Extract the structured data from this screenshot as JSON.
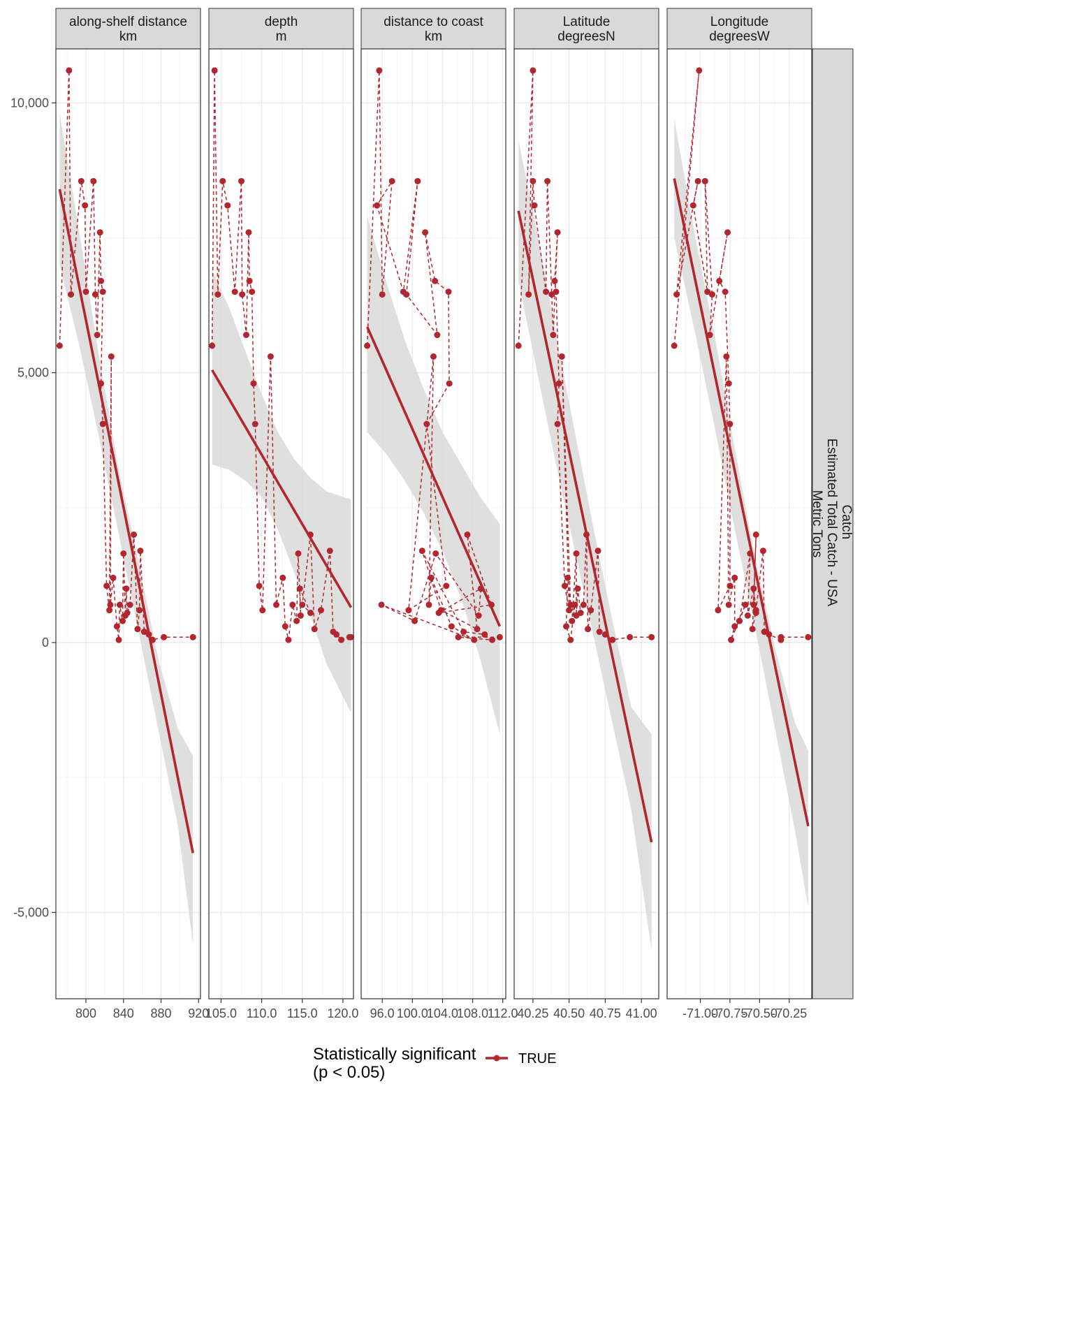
{
  "colors": {
    "series": "#b2262e",
    "ribbon": "#d9d9d9",
    "strip_fill": "#d9d9d9",
    "grid_major": "#ebebeb",
    "grid_minor": "#f5f5f5",
    "panel_border": "#333333"
  },
  "chart_data": {
    "type": "line",
    "facet_layout": "columns",
    "row_strip": [
      "Catch",
      "Estimated Total Catch - USA",
      "Metric Tons"
    ],
    "ylim": [
      -6600,
      11000
    ],
    "y_breaks": [
      -5000,
      0,
      5000,
      10000
    ],
    "y_tick_labels": [
      "-5,000",
      "0",
      "5,000",
      "10,000"
    ],
    "grid": true,
    "legend": {
      "title_lines": [
        "Statistically significant",
        "(p < 0.05)"
      ],
      "entries": [
        "TRUE"
      ],
      "position": "bottom"
    },
    "series_name": "TRUE",
    "y": [
      5500,
      10600,
      6450,
      8550,
      8100,
      6500,
      8550,
      6450,
      5700,
      7600,
      6700,
      6500,
      4800,
      4050,
      1050,
      600,
      5300,
      700,
      1200,
      300,
      50,
      700,
      400,
      1650,
      500,
      1000,
      550,
      700,
      2000,
      250,
      600,
      1700,
      200,
      150,
      50,
      100,
      100
    ],
    "panels": [
      {
        "title_lines": [
          "along-shelf distance",
          "km"
        ],
        "xlim": [
          768,
          922
        ],
        "x_breaks": [
          800,
          840,
          880,
          920
        ],
        "x_tick_labels": [
          "800",
          "840",
          "880",
          "920"
        ],
        "x": [
          772,
          782,
          784,
          795,
          799,
          800,
          808,
          810,
          812,
          815,
          816,
          818,
          816,
          818,
          822,
          825,
          827,
          826,
          829,
          833,
          835,
          836,
          839,
          840,
          842,
          843,
          844,
          847,
          851,
          855,
          857,
          858,
          862,
          867,
          871,
          883,
          914
        ],
        "fit": {
          "x": [
            772,
            914
          ],
          "y": [
            8400,
            -3900
          ]
        },
        "ribbon": {
          "x": [
            772,
            793,
            814,
            835,
            856,
            877,
            898,
            914
          ],
          "lower": [
            7000,
            5500,
            3800,
            2000,
            200,
            -1600,
            -3400,
            -5600
          ],
          "upper": [
            9800,
            7600,
            5300,
            3200,
            1500,
            -300,
            -1600,
            -2100
          ]
        }
      },
      {
        "title_lines": [
          "depth",
          "m"
        ],
        "xlim": [
          103.5,
          121.3
        ],
        "x_breaks": [
          105,
          110,
          115,
          120
        ],
        "x_tick_labels": [
          "105.0",
          "110.0",
          "115.0",
          "120.0"
        ],
        "x": [
          103.9,
          104.2,
          104.6,
          105.2,
          105.8,
          106.7,
          107.5,
          107.6,
          108.1,
          108.4,
          108.5,
          108.8,
          109.0,
          109.2,
          109.7,
          110.1,
          111.1,
          111.8,
          112.6,
          112.9,
          113.3,
          113.8,
          114.3,
          114.5,
          114.8,
          114.7,
          116.0,
          115.0,
          116.0,
          116.5,
          117.3,
          118.4,
          118.8,
          119.2,
          119.8,
          120.8,
          121.0
        ],
        "fit": {
          "x": [
            103.9,
            121.0
          ],
          "y": [
            5050,
            650
          ]
        },
        "ribbon": {
          "x": [
            103.9,
            106,
            108,
            110,
            112,
            114,
            116,
            118,
            121
          ],
          "lower": [
            3300,
            3200,
            3000,
            2700,
            2100,
            1300,
            500,
            -400,
            -1300
          ],
          "upper": [
            6900,
            6200,
            5400,
            4600,
            3900,
            3400,
            3050,
            2800,
            2650
          ]
        }
      },
      {
        "title_lines": [
          "distance to coast",
          "km"
        ],
        "xlim": [
          93.2,
          112.4
        ],
        "x_breaks": [
          96,
          100,
          104,
          108,
          112
        ],
        "x_tick_labels": [
          "96.0",
          "100.0",
          "104.0",
          "108.0",
          "112.0"
        ],
        "x": [
          94.0,
          95.6,
          96.0,
          97.3,
          95.3,
          98.8,
          100.7,
          99.2,
          103.3,
          101.7,
          103.0,
          104.8,
          104.9,
          101.9,
          104.5,
          99.5,
          102.8,
          102.2,
          102.5,
          105.2,
          108.2,
          95.9,
          100.3,
          103.1,
          108.8,
          109.1,
          103.5,
          110.5,
          107.3,
          108.6,
          103.8,
          101.3,
          106.8,
          109.6,
          110.6,
          106.1,
          111.6
        ],
        "fit": {
          "x": [
            94.0,
            111.6
          ],
          "y": [
            5850,
            300
          ]
        },
        "ribbon": {
          "x": [
            94.0,
            96.5,
            99,
            101.5,
            104,
            106.5,
            109,
            111.6
          ],
          "lower": [
            3900,
            3500,
            3000,
            2400,
            1700,
            800,
            -300,
            -1700
          ],
          "upper": [
            7900,
            6700,
            5600,
            4700,
            3900,
            3300,
            2700,
            2200
          ]
        }
      },
      {
        "title_lines": [
          "Latitude",
          "degreesN"
        ],
        "xlim": [
          40.12,
          41.12
        ],
        "x_breaks": [
          40.25,
          40.5,
          40.75,
          41.0
        ],
        "x_tick_labels": [
          "40.25",
          "40.50",
          "40.75",
          "41.00"
        ],
        "x": [
          40.15,
          40.25,
          40.22,
          40.25,
          40.26,
          40.34,
          40.35,
          40.38,
          40.39,
          40.42,
          40.4,
          40.41,
          40.43,
          40.42,
          40.47,
          40.5,
          40.45,
          40.51,
          40.49,
          40.48,
          40.51,
          40.54,
          40.52,
          40.55,
          40.55,
          40.56,
          40.58,
          40.6,
          40.62,
          40.63,
          40.65,
          40.7,
          40.71,
          40.75,
          40.8,
          40.92,
          41.07
        ],
        "fit": {
          "x": [
            40.15,
            41.07
          ],
          "y": [
            8000,
            -3700
          ]
        },
        "ribbon": {
          "x": [
            40.15,
            40.28,
            40.41,
            40.54,
            40.67,
            40.8,
            40.93,
            41.07
          ],
          "lower": [
            6700,
            5000,
            3300,
            1700,
            100,
            -1500,
            -3100,
            -5700
          ],
          "upper": [
            9300,
            7600,
            5700,
            3900,
            2100,
            400,
            -1200,
            -1700
          ]
        }
      },
      {
        "title_lines": [
          "Longitude",
          "degreesW"
        ],
        "xlim": [
          -71.28,
          -70.06
        ],
        "x_breaks": [
          -71.0,
          -70.75,
          -70.5,
          -70.25
        ],
        "x_tick_labels": [
          "-71.00",
          "-70.75",
          "-70.50",
          "-70.25"
        ],
        "x": [
          -71.22,
          -71.01,
          -71.2,
          -71.02,
          -71.06,
          -70.94,
          -70.96,
          -70.9,
          -70.92,
          -70.77,
          -70.84,
          -70.79,
          -70.76,
          -70.75,
          -70.75,
          -70.85,
          -70.78,
          -70.76,
          -70.71,
          -70.71,
          -70.74,
          -70.62,
          -70.67,
          -70.58,
          -70.6,
          -70.55,
          -70.53,
          -70.55,
          -70.53,
          -70.56,
          -70.53,
          -70.47,
          -70.46,
          -70.42,
          -70.32,
          -70.32,
          -70.09
        ],
        "fit": {
          "x": [
            -71.22,
            -70.09
          ],
          "y": [
            8600,
            -3400
          ]
        },
        "ribbon": {
          "x": [
            -71.22,
            -71.05,
            -70.88,
            -70.71,
            -70.54,
            -70.37,
            -70.2,
            -70.09
          ],
          "lower": [
            7500,
            5800,
            4000,
            2100,
            300,
            -1600,
            -3500,
            -4900
          ],
          "upper": [
            9700,
            7600,
            5700,
            3600,
            1600,
            -100,
            -1500,
            -2000
          ]
        }
      }
    ]
  }
}
